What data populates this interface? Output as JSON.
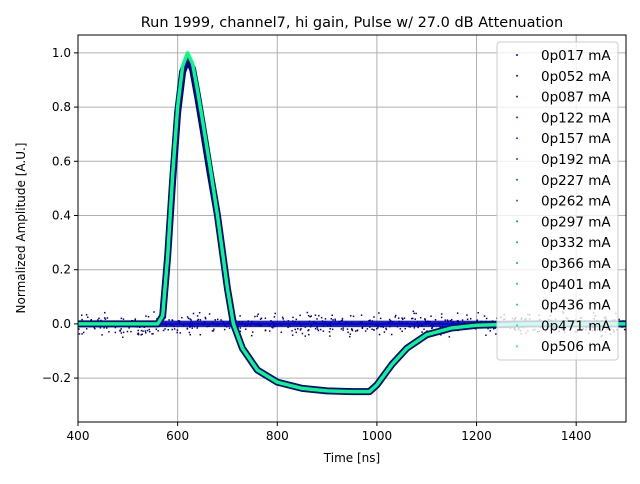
{
  "chart_data": {
    "type": "scatter",
    "title": "Run 1999, channel7, hi gain, Pulse w/ 27.0 dB Attenuation",
    "xlabel": "Time [ns]",
    "ylabel": "Normalized Amplitude [A.U.]",
    "xlim": [
      400,
      1500
    ],
    "ylim": [
      -0.362,
      1.066
    ],
    "grid": true,
    "legend_placement": "upper-right",
    "x_ticks": [
      400,
      600,
      800,
      1000,
      1200,
      1400
    ],
    "y_ticks": [
      -0.2,
      0.0,
      0.2,
      0.4,
      0.6,
      0.8,
      1.0
    ],
    "y_tick_labels": [
      "−0.2",
      "0.0",
      "0.2",
      "0.4",
      "0.6",
      "0.8",
      "1.0"
    ],
    "baseline_series": {
      "x": [
        400,
        1500
      ],
      "y": [
        0,
        0
      ],
      "noise": 0.03
    },
    "waveform": {
      "x": [
        400,
        560,
        570,
        580,
        590,
        600,
        610,
        620,
        630,
        640,
        650,
        665,
        680,
        700,
        712,
        730,
        760,
        800,
        850,
        900,
        950,
        985,
        1000,
        1030,
        1060,
        1100,
        1150,
        1200,
        1300,
        1500
      ],
      "y": [
        0,
        0,
        0.03,
        0.25,
        0.55,
        0.8,
        0.95,
        1.0,
        0.96,
        0.86,
        0.75,
        0.58,
        0.4,
        0.13,
        0.0,
        -0.09,
        -0.17,
        -0.215,
        -0.238,
        -0.247,
        -0.25,
        -0.25,
        -0.225,
        -0.15,
        -0.09,
        -0.04,
        -0.015,
        -0.005,
        0,
        0
      ]
    },
    "series": [
      {
        "name": "0p017 mA",
        "color": "#0000ff"
      },
      {
        "name": "0p052 mA",
        "color": "#0012f6"
      },
      {
        "name": "0p087 mA",
        "color": "#0024ed"
      },
      {
        "name": "0p122 mA",
        "color": "#0036e4"
      },
      {
        "name": "0p157 mA",
        "color": "#0049db"
      },
      {
        "name": "0p192 mA",
        "color": "#005bd2"
      },
      {
        "name": "0p227 mA",
        "color": "#006dc9"
      },
      {
        "name": "0p262 mA",
        "color": "#007fbf"
      },
      {
        "name": "0p297 mA",
        "color": "#0091b6"
      },
      {
        "name": "0p332 mA",
        "color": "#00a4ad"
      },
      {
        "name": "0p366 mA",
        "color": "#00b6a4"
      },
      {
        "name": "0p401 mA",
        "color": "#00c89b"
      },
      {
        "name": "0p436 mA",
        "color": "#00da92"
      },
      {
        "name": "0p471 mA",
        "color": "#00ed89"
      },
      {
        "name": "0p506 mA",
        "color": "#00ff80"
      }
    ]
  }
}
